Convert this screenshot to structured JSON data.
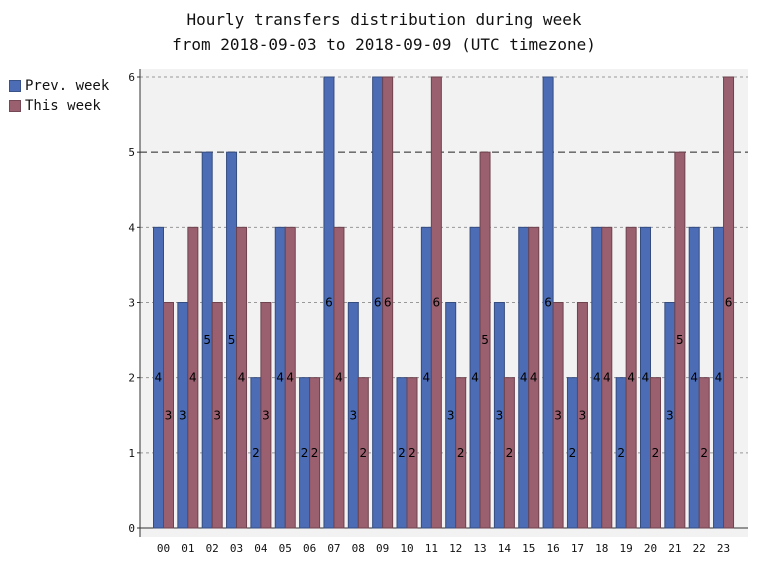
{
  "chart_data": {
    "type": "bar",
    "title": "Hourly transfers distribution during week",
    "subtitle": "from 2018-09-03 to 2018-09-09 (UTC timezone)",
    "categories": [
      "00",
      "01",
      "02",
      "03",
      "04",
      "05",
      "06",
      "07",
      "08",
      "09",
      "10",
      "11",
      "12",
      "13",
      "14",
      "15",
      "16",
      "17",
      "18",
      "19",
      "20",
      "21",
      "22",
      "23"
    ],
    "series": [
      {
        "name": "Prev. week",
        "color": "#4c6db5",
        "values": [
          4,
          3,
          5,
          5,
          2,
          4,
          2,
          6,
          3,
          6,
          2,
          4,
          3,
          4,
          3,
          4,
          6,
          2,
          4,
          2,
          4,
          3,
          4,
          4
        ]
      },
      {
        "name": "This week",
        "color": "#9b6070",
        "values": [
          3,
          4,
          3,
          4,
          3,
          4,
          2,
          4,
          2,
          6,
          2,
          6,
          2,
          5,
          2,
          4,
          3,
          3,
          4,
          4,
          2,
          5,
          2,
          6
        ]
      }
    ],
    "ylim": [
      0,
      6
    ],
    "yticks": [
      0,
      1,
      2,
      3,
      4,
      5,
      6
    ],
    "grid": true,
    "threshold_line": 5,
    "legend_position": "left"
  }
}
